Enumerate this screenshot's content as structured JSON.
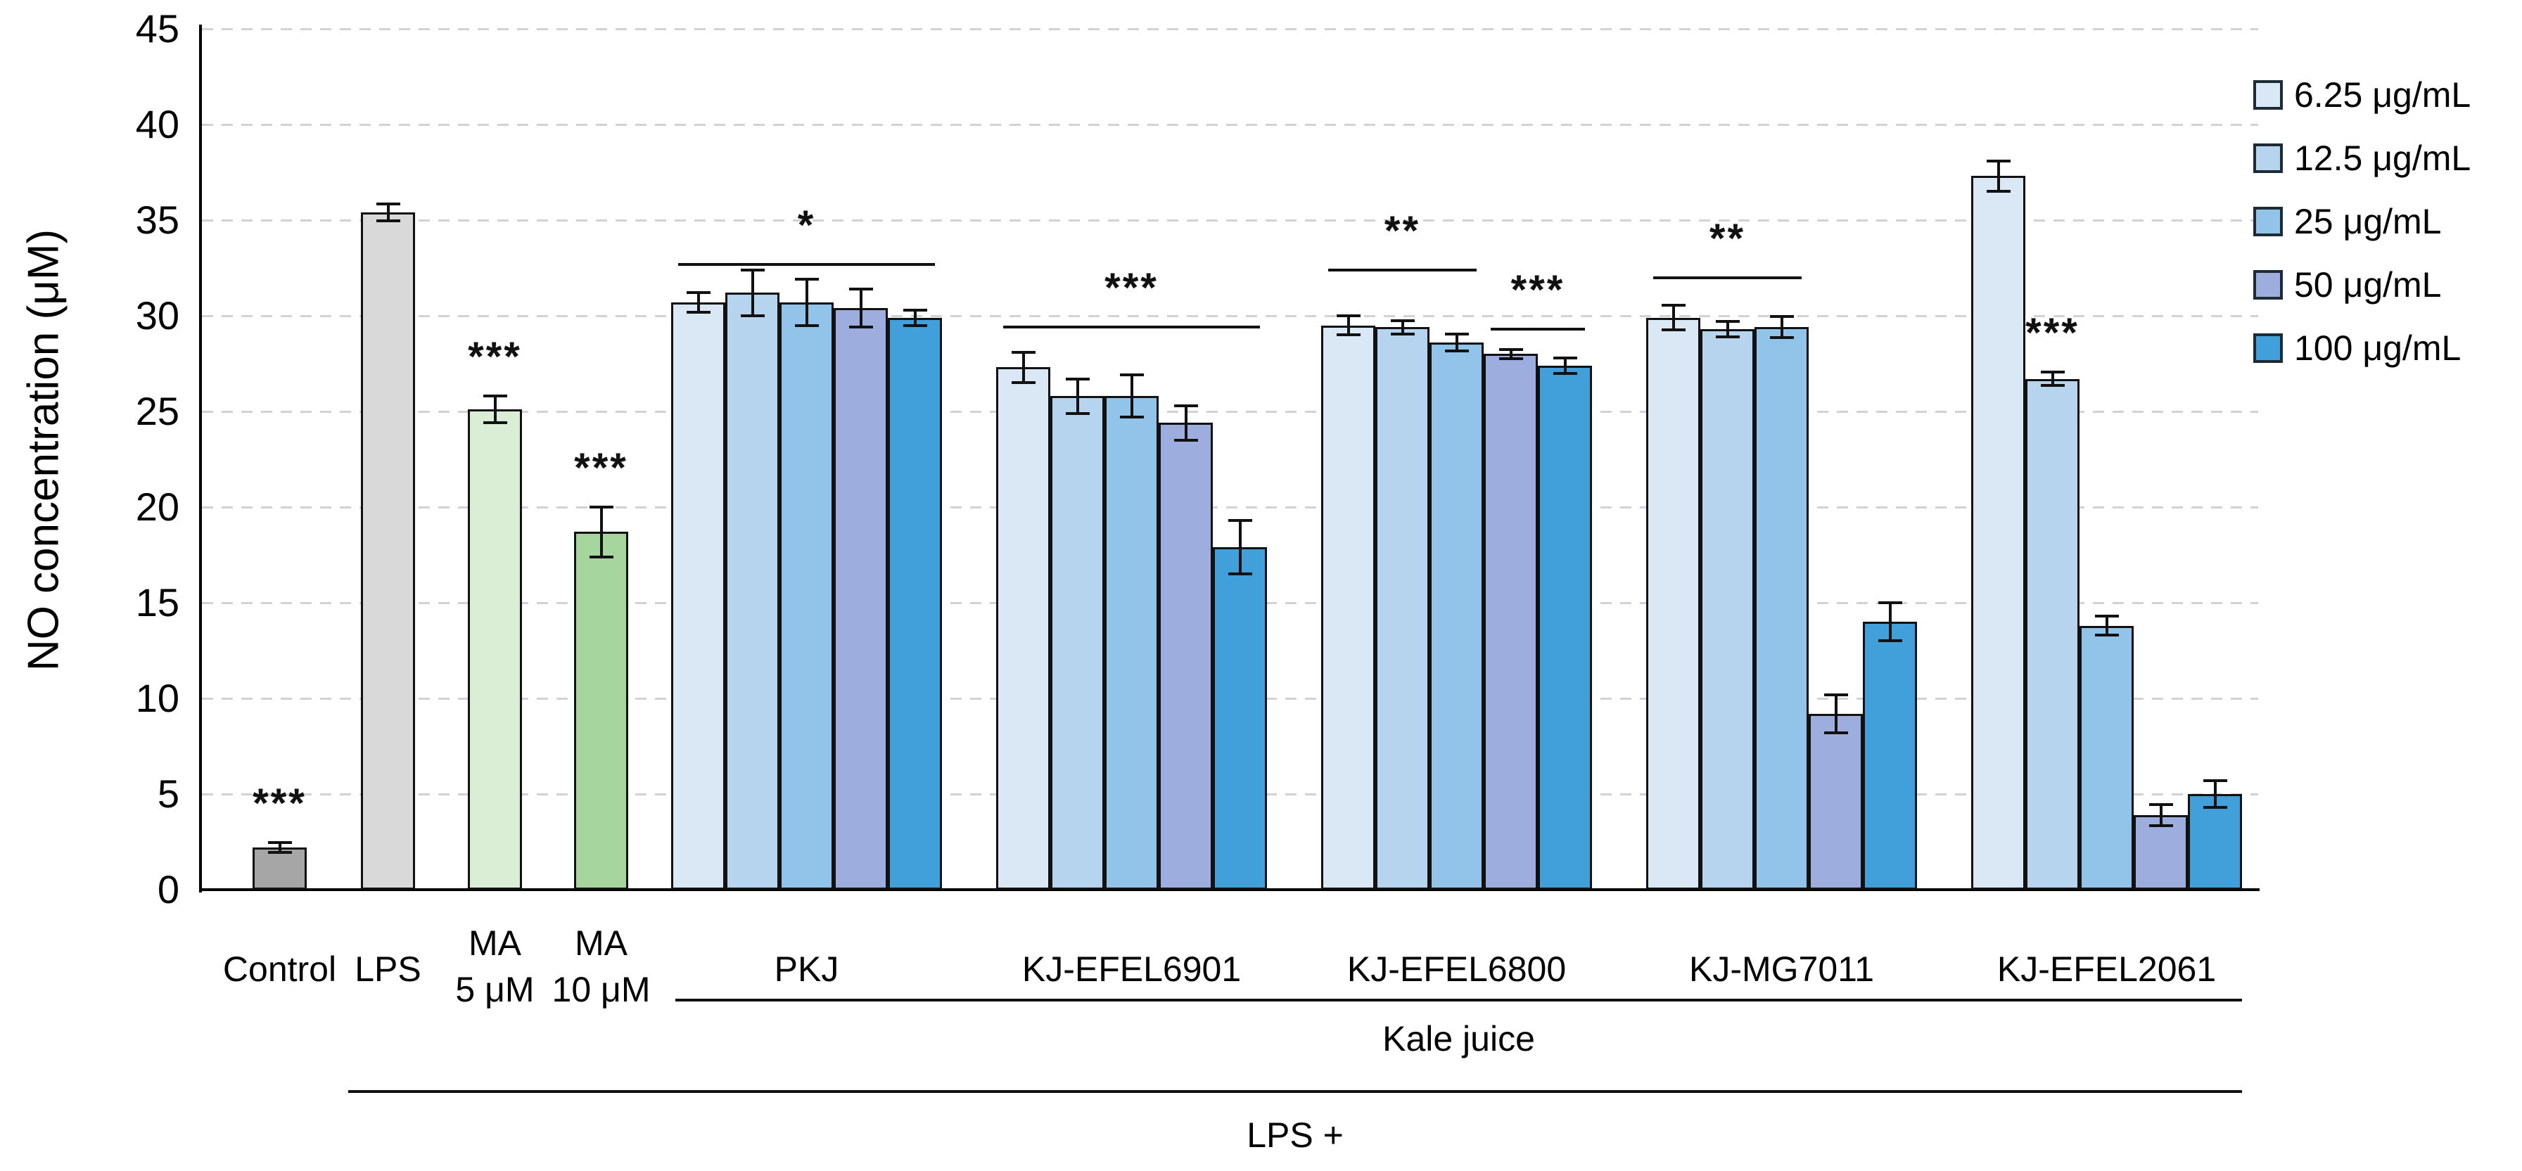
{
  "chart_data": {
    "type": "bar",
    "title": "",
    "xlabel": "",
    "ylabel": "NO concentration (μM)",
    "ylim": [
      0,
      45
    ],
    "yticks": [
      0,
      5,
      10,
      15,
      20,
      25,
      30,
      35,
      40,
      45
    ],
    "grid": "dashed-horizontal",
    "legend": {
      "position": "top-right",
      "entries": [
        {
          "label": "6.25 μg/mL",
          "color": "#dae8f6"
        },
        {
          "label": "12.5 μg/mL",
          "color": "#b6d4ee"
        },
        {
          "label": "25 μg/mL",
          "color": "#92c3e8"
        },
        {
          "label": "50 μg/mL",
          "color": "#9cadde"
        },
        {
          "label": "100 μg/mL",
          "color": "#41a0da"
        }
      ]
    },
    "single_bars": [
      {
        "label_lines": [
          "Control"
        ],
        "value": 2.2,
        "error": 0.25,
        "color": "#a6a6a6",
        "sig": "***"
      },
      {
        "label_lines": [
          "LPS"
        ],
        "value": 35.4,
        "error": 0.45,
        "color": "#d9d9d9",
        "sig": ""
      },
      {
        "label_lines": [
          "MA",
          "5 μM"
        ],
        "value": 25.1,
        "error": 0.7,
        "color": "#daeed6",
        "sig": "***"
      },
      {
        "label_lines": [
          "MA",
          "10 μM"
        ],
        "value": 18.7,
        "error": 1.3,
        "color": "#a6d69d",
        "sig": "***"
      }
    ],
    "group_concentrations": [
      "6.25",
      "12.5",
      "25",
      "50",
      "100"
    ],
    "groups": [
      {
        "label": "PKJ",
        "values": [
          30.7,
          31.2,
          30.7,
          30.4,
          29.9
        ],
        "errors": [
          0.5,
          1.2,
          1.2,
          1.0,
          0.4
        ],
        "brackets": [
          {
            "from": 0,
            "to": 4,
            "sig": "*",
            "line_at": 32.7
          }
        ]
      },
      {
        "label": "KJ-EFEL6901",
        "values": [
          27.3,
          25.8,
          25.8,
          24.4,
          17.9
        ],
        "errors": [
          0.8,
          0.9,
          1.1,
          0.9,
          1.4
        ],
        "brackets": [
          {
            "from": 0,
            "to": 4,
            "sig": "***",
            "line_at": 29.4
          }
        ]
      },
      {
        "label": "KJ-EFEL6800",
        "values": [
          29.5,
          29.4,
          28.6,
          28.0,
          27.4
        ],
        "errors": [
          0.5,
          0.35,
          0.45,
          0.25,
          0.4
        ],
        "brackets": [
          {
            "from": 0,
            "to": 2,
            "sig": "**",
            "line_at": 32.4
          },
          {
            "from": 3,
            "to": 4,
            "sig": "***",
            "line_at": 29.3
          }
        ]
      },
      {
        "label": "KJ-MG7011",
        "values": [
          29.9,
          29.3,
          29.4,
          9.2,
          14.0
        ],
        "errors": [
          0.65,
          0.4,
          0.55,
          1.0,
          1.0
        ],
        "brackets": [
          {
            "from": 0,
            "to": 2,
            "sig": "**",
            "line_at": 32.0
          }
        ]
      },
      {
        "label": "KJ-EFEL2061",
        "values": [
          37.3,
          26.7,
          13.8,
          3.9,
          5.0
        ],
        "errors": [
          0.8,
          0.35,
          0.5,
          0.55,
          0.7
        ],
        "brackets": [],
        "star_over": {
          "index": 1,
          "sig": "***"
        }
      }
    ],
    "annotations": {
      "kale_bracket_label": "Kale juice",
      "lps_bracket_label": "LPS +"
    },
    "colors": {
      "bar_border": "#111111",
      "axis": "#000000",
      "gridline": "#d2d2d2"
    }
  }
}
